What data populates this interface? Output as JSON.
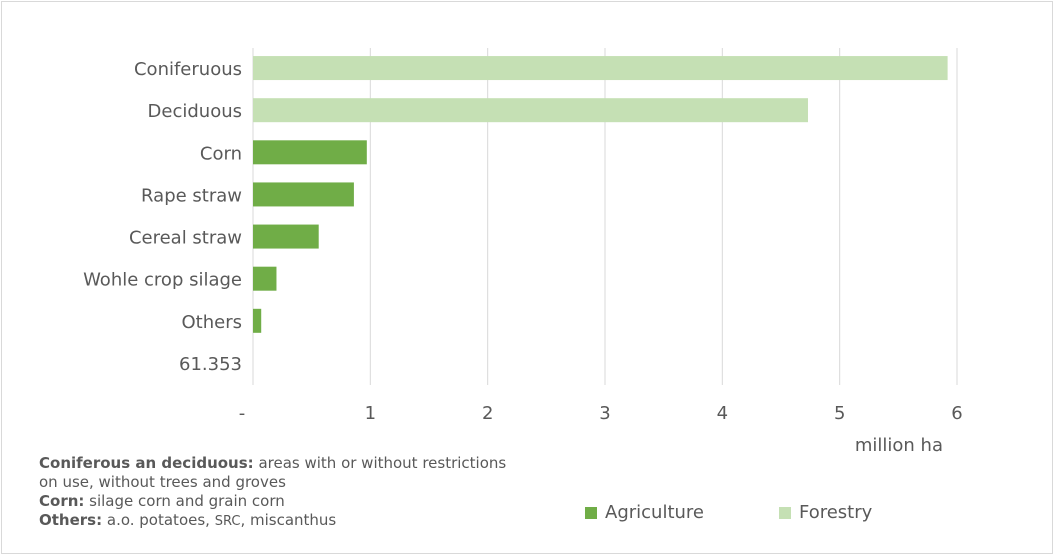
{
  "chart_data": {
    "type": "bar",
    "orientation": "horizontal",
    "categories": [
      "Coniferuous",
      "Deciduous",
      "Corn",
      "Rape straw",
      "Cereal straw",
      "Wohle crop silage",
      "Others",
      "61.353"
    ],
    "values": [
      5.92,
      4.73,
      0.97,
      0.86,
      0.56,
      0.2,
      0.07,
      0
    ],
    "groups": [
      "Forestry",
      "Forestry",
      "Agriculture",
      "Agriculture",
      "Agriculture",
      "Agriculture",
      "Agriculture",
      "Agriculture"
    ],
    "xticks": [
      "-",
      "1",
      "2",
      "3",
      "4",
      "5",
      "6"
    ],
    "xlim": [
      0,
      6
    ],
    "xlabel": "million ha",
    "grid": true,
    "legend_position": "bottom-right",
    "legend": [
      {
        "name": "Agriculture",
        "color": "#70ad47"
      },
      {
        "name": "Forestry",
        "color": "#c5e0b4"
      }
    ]
  },
  "note": {
    "line1_bold": "Coniferous an deciduous:",
    "line1_text": " areas with or without restrictions on use, without trees and groves",
    "line2_bold": "Corn:",
    "line2_text": " silage corn and grain corn",
    "line3_bold": "Others:",
    "line3_text": " a.o. potatoes,",
    "line3_small": "SRC",
    "line3_tail": ", miscanthus"
  }
}
